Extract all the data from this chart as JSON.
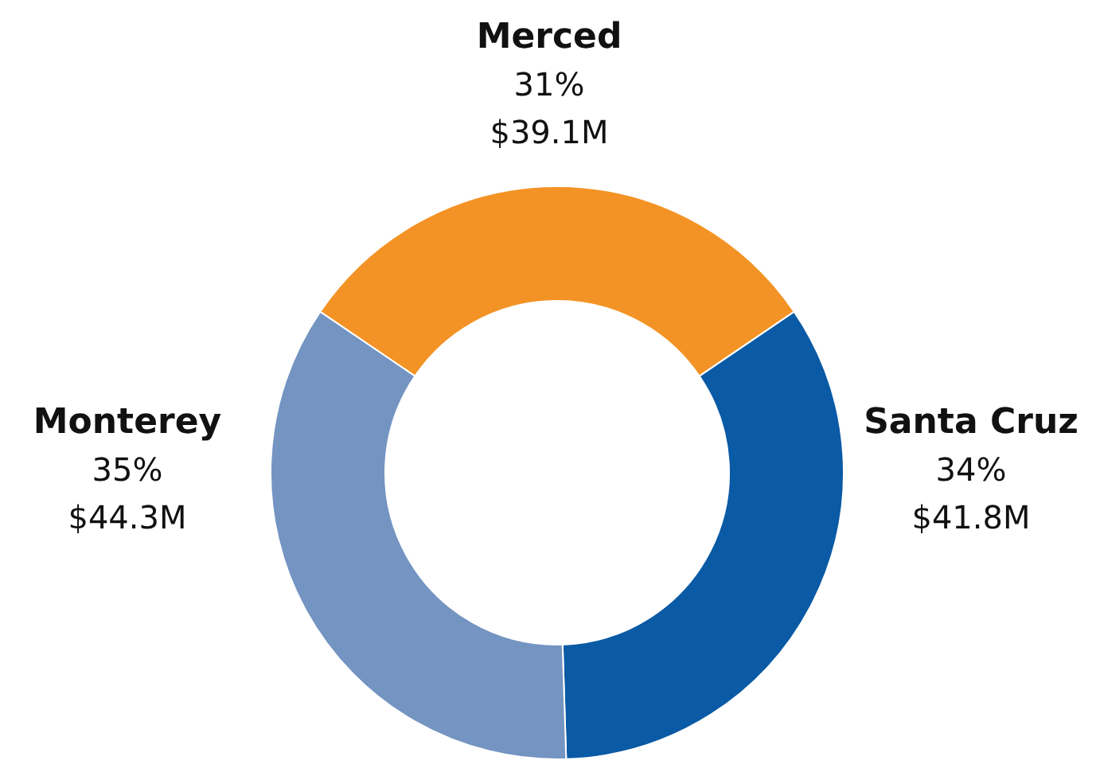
{
  "chart_data": {
    "type": "donut",
    "categories": [
      "Merced",
      "Santa Cruz",
      "Monterey"
    ],
    "values": [
      31,
      34,
      35
    ],
    "colors": [
      "#f39325",
      "#0a5aa5",
      "#7494c2"
    ],
    "value_labels": [
      "31%\n$39.1M",
      "34%\n$41.8M",
      "35%\n$44.3M"
    ],
    "legend": false
  }
}
